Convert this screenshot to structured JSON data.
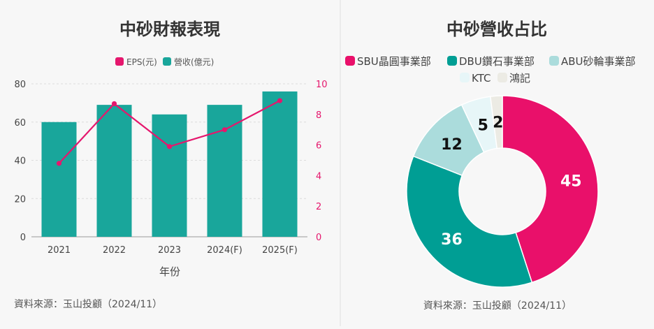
{
  "chart_data": [
    {
      "type": "bar+line",
      "title": "中砂財報表現",
      "categories": [
        "2021",
        "2022",
        "2023",
        "2024(F)",
        "2025(F)"
      ],
      "series": [
        {
          "name": "營收(億元)",
          "type": "bar",
          "axis": "left",
          "values": [
            60,
            69,
            64,
            69,
            76
          ]
        },
        {
          "name": "EPS(元)",
          "type": "line",
          "axis": "right",
          "values": [
            4.8,
            8.7,
            5.9,
            7.0,
            8.9
          ]
        }
      ],
      "xlabel": "年份",
      "ylim_left": [
        0,
        80
      ],
      "yticks_left": [
        "0",
        "20",
        "40",
        "60",
        "80"
      ],
      "ylim_right": [
        0,
        10
      ],
      "yticks_right": [
        "0",
        "2",
        "4",
        "6",
        "8",
        "10"
      ],
      "legend": [
        {
          "label": "EPS(元)",
          "color": "#e5176d"
        },
        {
          "label": "營收(億元)",
          "color": "#19a69b"
        }
      ],
      "legend_position": "top",
      "colors": {
        "bar": "#19a69b",
        "line": "#e5176d",
        "right_axis": "#e5176d"
      }
    },
    {
      "type": "pie",
      "title": "中砂營收占比",
      "labels": [
        "SBU晶圓事業部",
        "DBU鑽石事業部",
        "ABU砂輪事業部",
        "KTC",
        "鴻記"
      ],
      "values": [
        45,
        36,
        12,
        5,
        2
      ],
      "value_labels": [
        "45",
        "36",
        "12",
        "5",
        "2"
      ],
      "colors": [
        "#e9106a",
        "#009e94",
        "#abdcdc",
        "#e7f6f8",
        "#ecebe4"
      ],
      "legend_position": "top"
    }
  ],
  "left": {
    "source": "資料來源：玉山投顧（2024/11）"
  },
  "right": {
    "source": "資料來源：玉山投顧（2024/11）"
  }
}
